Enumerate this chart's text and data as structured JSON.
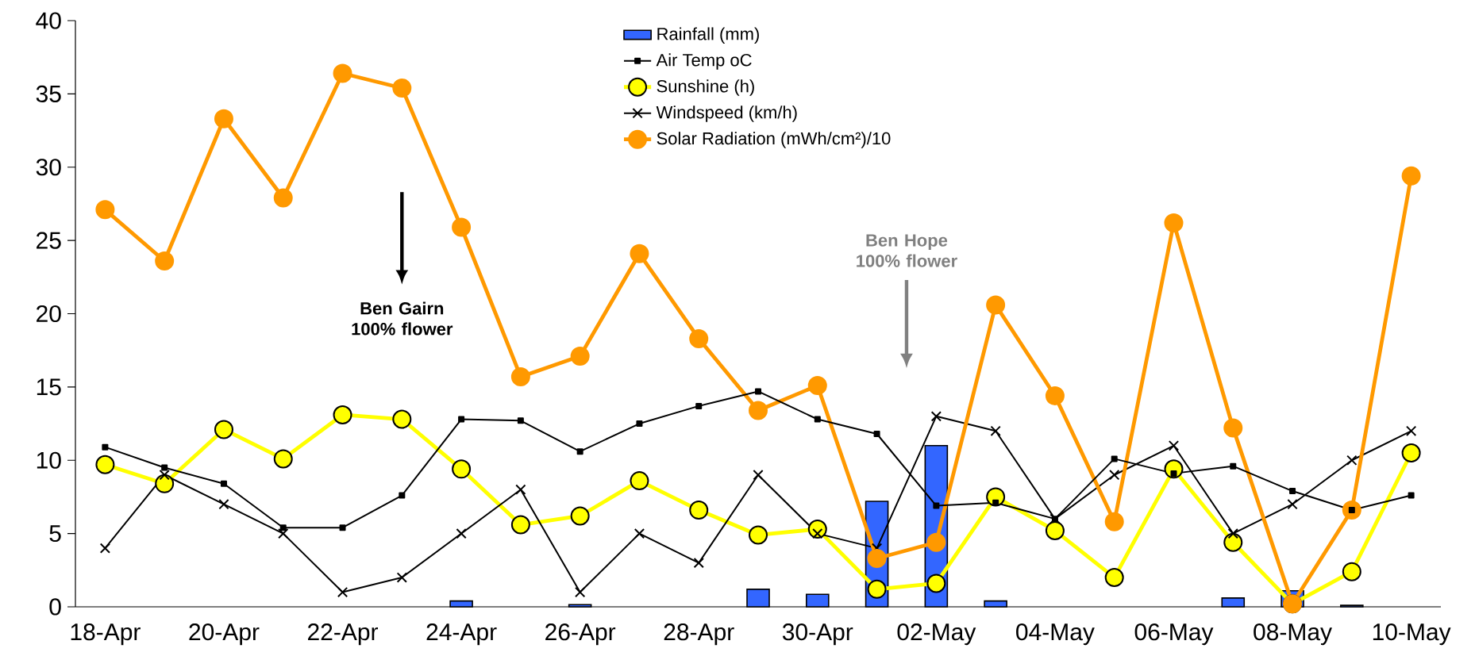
{
  "chart_data": {
    "type": "line",
    "categories": [
      "18-Apr",
      null,
      "20-Apr",
      null,
      "22-Apr",
      null,
      "24-Apr",
      null,
      "26-Apr",
      null,
      "28-Apr",
      null,
      "30-Apr",
      null,
      "02-May",
      null,
      "04-May",
      null,
      "06-May",
      null,
      "08-May",
      null,
      "10-May"
    ],
    "ylim": [
      0,
      40
    ],
    "yticks": [
      0,
      5,
      10,
      15,
      20,
      25,
      30,
      35,
      40
    ],
    "legend": "top",
    "grid": false,
    "annotations": [
      "Ben Gairn 100% flower",
      "Ben Hope 100% flower"
    ],
    "series": [
      {
        "name": "Rainfall (mm)",
        "type": "bar",
        "color": "#3366ff",
        "values": [
          null,
          null,
          null,
          null,
          null,
          null,
          0.4,
          null,
          0.15,
          null,
          null,
          1.2,
          0.85,
          7.2,
          11.0,
          0.4,
          null,
          null,
          null,
          0.6,
          1.1,
          0.1,
          null
        ]
      },
      {
        "name": "Air Temp oC",
        "color": "#000000",
        "marker": "square",
        "values": [
          10.9,
          9.5,
          8.4,
          5.4,
          5.4,
          7.6,
          12.8,
          12.7,
          10.6,
          12.5,
          13.7,
          14.7,
          12.8,
          11.8,
          6.9,
          7.1,
          6.0,
          10.1,
          9.1,
          9.6,
          7.9,
          6.6,
          7.6
        ]
      },
      {
        "name": "Sunshine (h)",
        "color": "#ffff00",
        "marker": "circle",
        "values": [
          9.7,
          8.4,
          12.1,
          10.1,
          13.1,
          12.8,
          9.4,
          5.6,
          6.2,
          8.6,
          6.6,
          4.9,
          5.3,
          1.2,
          1.6,
          7.5,
          5.2,
          2.0,
          9.4,
          4.4,
          0.2,
          2.4,
          10.5
        ]
      },
      {
        "name": "Windspeed (km/h)",
        "color": "#000000",
        "marker": "cross",
        "values": [
          4,
          9,
          7,
          5,
          1,
          2,
          5,
          8,
          1,
          5,
          3,
          9,
          5,
          4,
          13,
          12,
          6,
          9,
          11,
          5,
          7,
          10,
          12
        ]
      },
      {
        "name": "Solar Radiation (mWh/cm²)/10",
        "color": "#ff9900",
        "marker": "circle",
        "values": [
          27.1,
          23.6,
          33.3,
          27.9,
          36.4,
          35.4,
          25.9,
          15.7,
          17.1,
          24.1,
          18.3,
          13.4,
          15.1,
          3.3,
          4.4,
          20.6,
          14.4,
          5.8,
          26.2,
          12.2,
          0.2,
          6.6,
          29.4
        ]
      }
    ]
  }
}
